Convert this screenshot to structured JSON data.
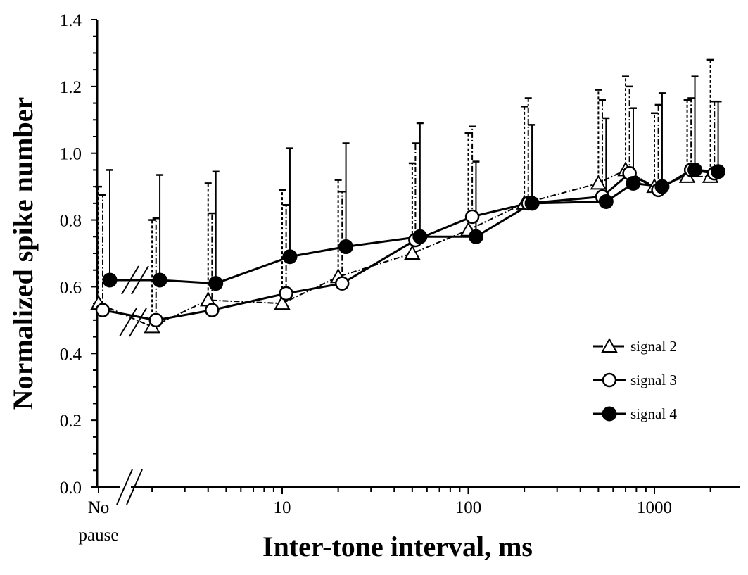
{
  "chart_data": {
    "type": "line",
    "title": "",
    "xlabel": "Inter-tone interval, ms",
    "ylabel": "Normalized spike number",
    "x_scale": "log",
    "x_break_category": "No pause",
    "x_break_label_lines": [
      "No",
      "pause"
    ],
    "x_tick_labels": [
      "10",
      "100",
      "1000"
    ],
    "x_ticks": [
      10,
      100,
      1000
    ],
    "y_tick_labels": [
      "0.0",
      "0.2",
      "0.4",
      "0.6",
      "0.8",
      "1.0",
      "1.2",
      "1.4"
    ],
    "ylim": [
      0,
      1.4
    ],
    "grid": false,
    "legend_position": "right-middle",
    "error_bars": "upper only",
    "series": [
      {
        "name": "signal 2",
        "marker": "open-triangle",
        "line_style": "dash-dot",
        "error_style": "dashed",
        "no_pause": {
          "y": 0.55,
          "err_upper": 0.9
        },
        "x": [
          2,
          4,
          10,
          20,
          50,
          100,
          200,
          500,
          700,
          1000,
          1500,
          2000
        ],
        "y": [
          0.48,
          0.56,
          0.55,
          0.63,
          0.7,
          0.77,
          0.85,
          0.91,
          0.95,
          0.9,
          0.93,
          0.93
        ],
        "err_upper": [
          0.8,
          0.91,
          0.89,
          0.92,
          0.97,
          1.06,
          1.14,
          1.19,
          1.23,
          1.12,
          1.16,
          1.28
        ]
      },
      {
        "name": "signal 3",
        "marker": "open-circle",
        "line_style": "solid",
        "error_style": "dash-dot",
        "no_pause": {
          "y": 0.53,
          "err_upper": 0.875
        },
        "x": [
          2.1,
          4.2,
          10.5,
          21,
          52,
          105,
          210,
          525,
          735,
          1050,
          1575,
          2100
        ],
        "y": [
          0.5,
          0.53,
          0.58,
          0.61,
          0.74,
          0.81,
          0.85,
          0.87,
          0.94,
          0.89,
          0.95,
          0.94
        ],
        "err_upper": [
          0.805,
          0.82,
          0.845,
          0.885,
          1.03,
          1.08,
          1.165,
          1.16,
          1.2,
          1.145,
          1.165,
          1.155
        ]
      },
      {
        "name": "signal 4",
        "marker": "filled-circle",
        "line_style": "solid",
        "error_style": "solid",
        "no_pause": {
          "y": 0.62,
          "err_upper": 0.95
        },
        "x": [
          2.2,
          4.4,
          11,
          22,
          55,
          110,
          220,
          550,
          770,
          1100,
          1650,
          2200
        ],
        "y": [
          0.62,
          0.61,
          0.69,
          0.72,
          0.75,
          0.75,
          0.85,
          0.855,
          0.91,
          0.9,
          0.95,
          0.945
        ],
        "err_upper": [
          0.935,
          0.945,
          1.015,
          1.03,
          1.09,
          0.975,
          1.085,
          1.105,
          1.135,
          1.18,
          1.23,
          1.155
        ]
      }
    ]
  }
}
